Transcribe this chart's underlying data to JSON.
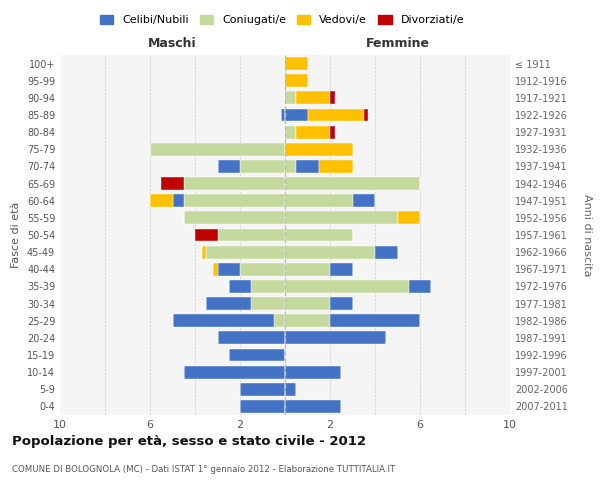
{
  "age_groups": [
    "0-4",
    "5-9",
    "10-14",
    "15-19",
    "20-24",
    "25-29",
    "30-34",
    "35-39",
    "40-44",
    "45-49",
    "50-54",
    "55-59",
    "60-64",
    "65-69",
    "70-74",
    "75-79",
    "80-84",
    "85-89",
    "90-94",
    "95-99",
    "100+"
  ],
  "birth_years": [
    "2007-2011",
    "2002-2006",
    "1997-2001",
    "1992-1996",
    "1987-1991",
    "1982-1986",
    "1977-1981",
    "1972-1976",
    "1967-1971",
    "1962-1966",
    "1957-1961",
    "1952-1956",
    "1947-1951",
    "1942-1946",
    "1937-1941",
    "1932-1936",
    "1927-1931",
    "1922-1926",
    "1917-1921",
    "1912-1916",
    "≤ 1911"
  ],
  "males": {
    "celibi": [
      2.0,
      2.0,
      4.5,
      2.5,
      3.0,
      4.5,
      2.0,
      1.0,
      1.0,
      0,
      0,
      0,
      0.5,
      0,
      1.0,
      0,
      0,
      0.2,
      0,
      0,
      0
    ],
    "coniugati": [
      0,
      0,
      0,
      0,
      0,
      0.5,
      1.5,
      1.5,
      2.0,
      3.5,
      3.0,
      4.5,
      4.5,
      4.5,
      2.0,
      6.0,
      0,
      0,
      0,
      0,
      0
    ],
    "vedovi": [
      0,
      0,
      0,
      0,
      0,
      0,
      0,
      0,
      0.2,
      0.2,
      0,
      0,
      1.0,
      0,
      0,
      0,
      0,
      0,
      0,
      0,
      0
    ],
    "divorziati": [
      0,
      0,
      0,
      0,
      0,
      0,
      0,
      0,
      0,
      0,
      1.0,
      0,
      0,
      1.0,
      0,
      0,
      0,
      0,
      0,
      0,
      0
    ]
  },
  "females": {
    "nubili": [
      2.5,
      0.5,
      2.5,
      0,
      4.5,
      4.0,
      1.0,
      1.0,
      1.0,
      1.0,
      0,
      0,
      1.0,
      0,
      1.0,
      0,
      0,
      1.0,
      0,
      0,
      0
    ],
    "coniugate": [
      0,
      0,
      0,
      0,
      0,
      2.0,
      2.0,
      5.5,
      2.0,
      4.0,
      3.0,
      5.0,
      3.0,
      6.0,
      0.5,
      0,
      0.5,
      0,
      0.5,
      0,
      0
    ],
    "vedove": [
      0,
      0,
      0,
      0,
      0,
      0,
      0,
      0,
      0,
      0,
      0,
      1.0,
      0,
      0,
      1.5,
      3.0,
      1.5,
      2.5,
      1.5,
      1.0,
      1.0
    ],
    "divorziate": [
      0,
      0,
      0,
      0,
      0,
      0,
      0,
      0,
      0,
      0,
      0,
      0,
      0,
      0,
      0,
      0,
      0.2,
      0.2,
      0.2,
      0,
      0
    ]
  },
  "color_celibi": "#4472c4",
  "color_coniugati": "#c5d89d",
  "color_vedovi": "#ffc000",
  "color_divorziati": "#c00000",
  "title": "Popolazione per età, sesso e stato civile - 2012",
  "subtitle": "COMUNE DI BOLOGNOLA (MC) - Dati ISTAT 1° gennaio 2012 - Elaborazione TUTTITALIA.IT",
  "ylabel": "Fasce di età",
  "ylabel_right": "Anni di nascita",
  "xlabel_left": "Maschi",
  "xlabel_right": "Femmine",
  "xlim": 10,
  "xticks": [
    10,
    6,
    2,
    2,
    6,
    10
  ],
  "xtick_positions": [
    -10,
    -6,
    -2,
    2,
    6,
    10
  ],
  "legend_labels": [
    "Celibi/Nubili",
    "Coniugati/e",
    "Vedovi/e",
    "Divorziati/e"
  ],
  "bg_color": "#f5f5f5",
  "bar_edge_color": "white",
  "grid_color": "#cccccc"
}
